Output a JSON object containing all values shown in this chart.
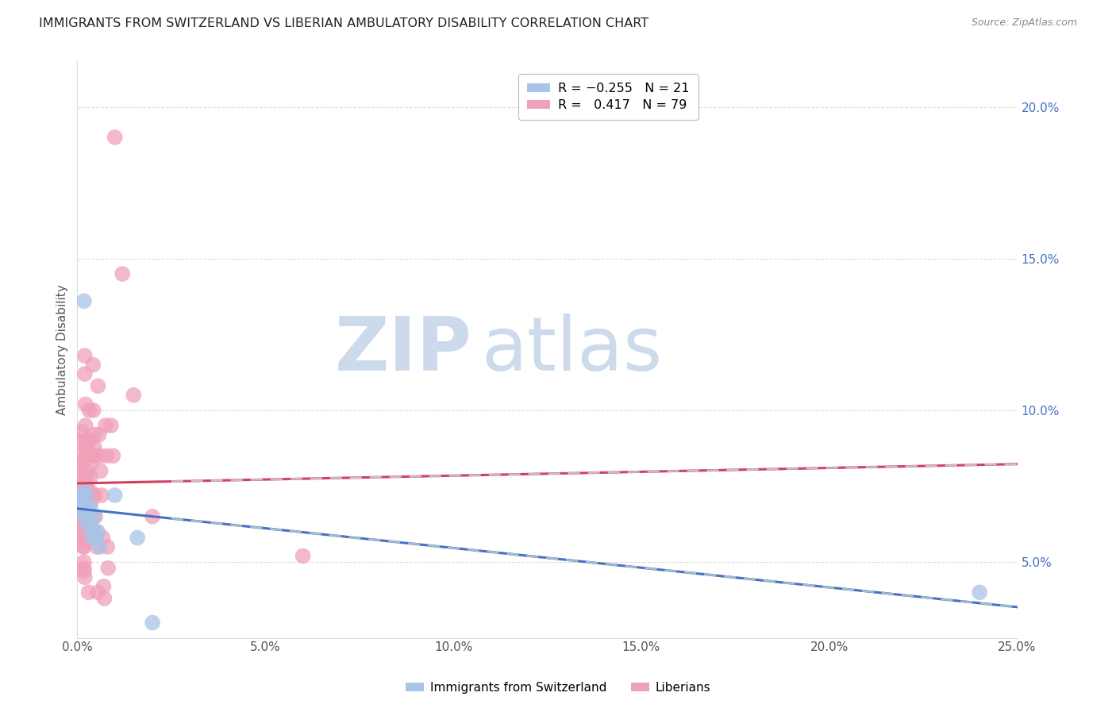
{
  "title": "IMMIGRANTS FROM SWITZERLAND VS LIBERIAN AMBULATORY DISABILITY CORRELATION CHART",
  "source": "Source: ZipAtlas.com",
  "ylabel": "Ambulatory Disability",
  "xlim": [
    0.0,
    0.25
  ],
  "ylim": [
    0.025,
    0.215
  ],
  "xticks": [
    0.0,
    0.05,
    0.1,
    0.15,
    0.2,
    0.25
  ],
  "xtick_labels": [
    "0.0%",
    "5.0%",
    "10.0%",
    "15.0%",
    "20.0%",
    "25.0%"
  ],
  "yticks_right": [
    0.05,
    0.1,
    0.15,
    0.2
  ],
  "ytick_labels_right": [
    "5.0%",
    "10.0%",
    "15.0%",
    "20.0%"
  ],
  "swiss_color": "#a8c4e8",
  "lib_color": "#f0a0b8",
  "swiss_line_color": "#4472c4",
  "lib_line_color": "#d04060",
  "watermark_color": "#ccdaec",
  "swiss_R": -0.255,
  "swiss_N": 21,
  "lib_R": 0.417,
  "lib_N": 79,
  "swiss_points": [
    [
      0.0018,
      0.136
    ],
    [
      0.0008,
      0.072
    ],
    [
      0.001,
      0.07
    ],
    [
      0.0012,
      0.068
    ],
    [
      0.0015,
      0.065
    ],
    [
      0.002,
      0.073
    ],
    [
      0.0022,
      0.068
    ],
    [
      0.0025,
      0.072
    ],
    [
      0.0028,
      0.065
    ],
    [
      0.003,
      0.062
    ],
    [
      0.0035,
      0.068
    ],
    [
      0.0038,
      0.061
    ],
    [
      0.004,
      0.058
    ],
    [
      0.0045,
      0.065
    ],
    [
      0.005,
      0.058
    ],
    [
      0.0055,
      0.06
    ],
    [
      0.006,
      0.055
    ],
    [
      0.01,
      0.072
    ],
    [
      0.016,
      0.058
    ],
    [
      0.02,
      0.03
    ],
    [
      0.24,
      0.04
    ]
  ],
  "lib_points": [
    [
      0.0005,
      0.09
    ],
    [
      0.0008,
      0.085
    ],
    [
      0.001,
      0.083
    ],
    [
      0.001,
      0.08
    ],
    [
      0.001,
      0.078
    ],
    [
      0.0012,
      0.075
    ],
    [
      0.0012,
      0.093
    ],
    [
      0.0013,
      0.073
    ],
    [
      0.0013,
      0.07
    ],
    [
      0.0013,
      0.068
    ],
    [
      0.0014,
      0.067
    ],
    [
      0.0014,
      0.065
    ],
    [
      0.0015,
      0.065
    ],
    [
      0.0015,
      0.063
    ],
    [
      0.0015,
      0.062
    ],
    [
      0.0015,
      0.06
    ],
    [
      0.0016,
      0.058
    ],
    [
      0.0016,
      0.057
    ],
    [
      0.0017,
      0.055
    ],
    [
      0.0017,
      0.055
    ],
    [
      0.0018,
      0.05
    ],
    [
      0.0018,
      0.048
    ],
    [
      0.0018,
      0.047
    ],
    [
      0.002,
      0.045
    ],
    [
      0.002,
      0.118
    ],
    [
      0.002,
      0.112
    ],
    [
      0.0022,
      0.102
    ],
    [
      0.0022,
      0.095
    ],
    [
      0.0023,
      0.09
    ],
    [
      0.0023,
      0.088
    ],
    [
      0.0024,
      0.085
    ],
    [
      0.0024,
      0.08
    ],
    [
      0.0025,
      0.078
    ],
    [
      0.0025,
      0.075
    ],
    [
      0.0026,
      0.072
    ],
    [
      0.0026,
      0.068
    ],
    [
      0.0027,
      0.065
    ],
    [
      0.0028,
      0.062
    ],
    [
      0.0028,
      0.06
    ],
    [
      0.003,
      0.058
    ],
    [
      0.003,
      0.04
    ],
    [
      0.0032,
      0.1
    ],
    [
      0.0033,
      0.09
    ],
    [
      0.0034,
      0.085
    ],
    [
      0.0035,
      0.082
    ],
    [
      0.0036,
      0.078
    ],
    [
      0.0037,
      0.073
    ],
    [
      0.0038,
      0.07
    ],
    [
      0.004,
      0.065
    ],
    [
      0.0042,
      0.058
    ],
    [
      0.0042,
      0.115
    ],
    [
      0.0043,
      0.1
    ],
    [
      0.0044,
      0.092
    ],
    [
      0.0045,
      0.088
    ],
    [
      0.0046,
      0.085
    ],
    [
      0.0047,
      0.072
    ],
    [
      0.0048,
      0.065
    ],
    [
      0.005,
      0.06
    ],
    [
      0.0052,
      0.055
    ],
    [
      0.0055,
      0.04
    ],
    [
      0.0055,
      0.108
    ],
    [
      0.0058,
      0.092
    ],
    [
      0.006,
      0.085
    ],
    [
      0.0062,
      0.08
    ],
    [
      0.0065,
      0.072
    ],
    [
      0.0068,
      0.058
    ],
    [
      0.007,
      0.042
    ],
    [
      0.0072,
      0.038
    ],
    [
      0.0075,
      0.095
    ],
    [
      0.0078,
      0.085
    ],
    [
      0.008,
      0.055
    ],
    [
      0.0082,
      0.048
    ],
    [
      0.009,
      0.095
    ],
    [
      0.0095,
      0.085
    ],
    [
      0.01,
      0.19
    ],
    [
      0.012,
      0.145
    ],
    [
      0.015,
      0.105
    ],
    [
      0.02,
      0.065
    ],
    [
      0.06,
      0.052
    ]
  ]
}
